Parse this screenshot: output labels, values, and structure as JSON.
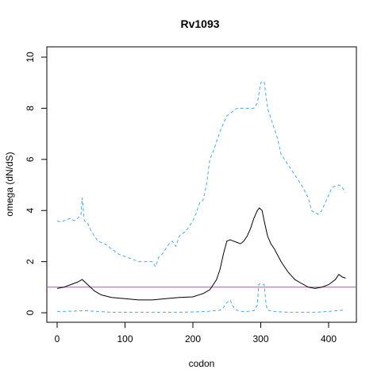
{
  "chart_data": {
    "type": "line",
    "title": "Rv1093",
    "xlabel": "codon",
    "ylabel": "omega (dN/dS)",
    "xlim": [
      0,
      430
    ],
    "ylim": [
      0,
      10
    ],
    "x_ticks": [
      0,
      100,
      200,
      300,
      400
    ],
    "y_ticks": [
      0,
      2,
      4,
      6,
      8,
      10
    ],
    "grid": false,
    "legend": "none",
    "reference_line": {
      "y": 1,
      "color": "#cc44cc"
    },
    "series": [
      {
        "style": "solid",
        "color": "#000000",
        "x": [
          0,
          10,
          20,
          30,
          37,
          45,
          55,
          65,
          80,
          100,
          120,
          140,
          160,
          180,
          200,
          215,
          225,
          235,
          240,
          245,
          250,
          255,
          260,
          265,
          270,
          275,
          280,
          285,
          290,
          295,
          298,
          302,
          305,
          310,
          315,
          320,
          330,
          340,
          350,
          360,
          370,
          380,
          390,
          400,
          410,
          415,
          420,
          425
        ],
        "y": [
          0.95,
          1.0,
          1.1,
          1.2,
          1.3,
          1.1,
          0.85,
          0.7,
          0.6,
          0.55,
          0.5,
          0.5,
          0.55,
          0.6,
          0.62,
          0.75,
          0.9,
          1.3,
          1.7,
          2.3,
          2.8,
          2.85,
          2.8,
          2.75,
          2.7,
          2.8,
          3.0,
          3.3,
          3.7,
          4.0,
          4.1,
          4.0,
          3.6,
          3.0,
          2.7,
          2.5,
          2.0,
          1.6,
          1.3,
          1.15,
          1.0,
          0.95,
          1.0,
          1.1,
          1.3,
          1.5,
          1.4,
          1.35
        ]
      },
      {
        "style": "dashed",
        "color": "#4aa8e8",
        "x": [
          0,
          5,
          10,
          15,
          20,
          25,
          30,
          35,
          37,
          40,
          45,
          50,
          55,
          60,
          70,
          80,
          90,
          100,
          110,
          120,
          130,
          140,
          145,
          150,
          155,
          160,
          165,
          170,
          175,
          180,
          190,
          200,
          205,
          210,
          215,
          220,
          225,
          230,
          235,
          240,
          245,
          250,
          255,
          260,
          265,
          270,
          280,
          290,
          295,
          300,
          305,
          310,
          315,
          320,
          325,
          330,
          340,
          350,
          360,
          370,
          375,
          380,
          385,
          390,
          395,
          400,
          405,
          410,
          415,
          420,
          425
        ],
        "y": [
          3.6,
          3.55,
          3.6,
          3.65,
          3.7,
          3.6,
          3.7,
          3.8,
          4.5,
          3.6,
          3.5,
          3.2,
          3.0,
          2.8,
          2.7,
          2.5,
          2.3,
          2.2,
          2.1,
          2.0,
          2.0,
          2.0,
          1.8,
          2.2,
          2.3,
          2.5,
          2.7,
          2.8,
          2.6,
          3.0,
          3.2,
          3.6,
          3.9,
          4.3,
          4.4,
          5.0,
          6.0,
          6.3,
          6.7,
          7.1,
          7.4,
          7.7,
          7.8,
          7.9,
          8.0,
          8.0,
          8.0,
          8.0,
          8.2,
          9.0,
          9.05,
          8.0,
          7.6,
          7.2,
          6.8,
          6.2,
          5.8,
          5.4,
          5.0,
          4.5,
          4.0,
          3.9,
          3.85,
          4.0,
          4.3,
          4.6,
          4.9,
          4.95,
          5.0,
          4.9,
          4.7
        ]
      },
      {
        "style": "dashed",
        "color": "#4aa8e8",
        "x": [
          0,
          20,
          40,
          60,
          80,
          100,
          120,
          140,
          160,
          180,
          200,
          220,
          240,
          245,
          250,
          255,
          258,
          262,
          265,
          270,
          280,
          290,
          295,
          297,
          300,
          305,
          308,
          310,
          320,
          340,
          360,
          380,
          400,
          420,
          425
        ],
        "y": [
          0.05,
          0.06,
          0.08,
          0.05,
          0.02,
          0.02,
          0.02,
          0.02,
          0.02,
          0.02,
          0.03,
          0.05,
          0.1,
          0.2,
          0.4,
          0.5,
          0.3,
          0.15,
          0.1,
          0.05,
          0.05,
          0.08,
          0.3,
          1.1,
          1.15,
          1.1,
          0.3,
          0.1,
          0.05,
          0.02,
          0.02,
          0.02,
          0.05,
          0.1,
          0.08
        ]
      }
    ]
  }
}
